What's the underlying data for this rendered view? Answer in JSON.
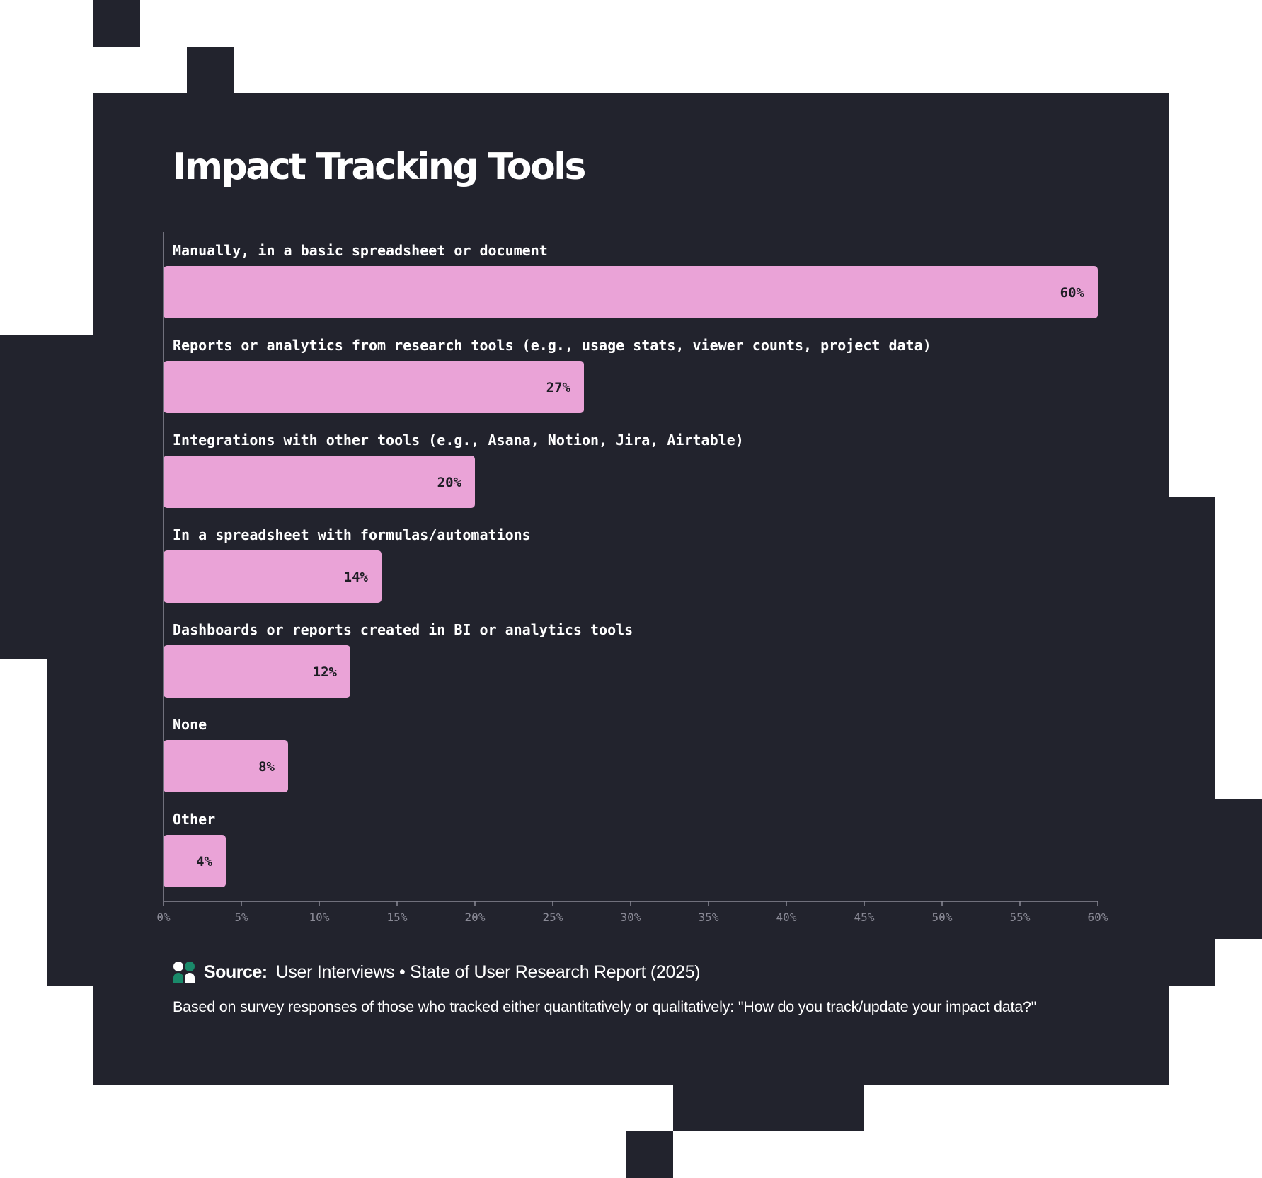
{
  "page": {
    "title": "Impact Tracking Tools",
    "source_prefix": "Source:",
    "source_text": "User Interviews • State of User Research Report (2025)",
    "footnote": "Based on survey responses of those who tracked either quantitatively or qualitatively: \"How do you track/update your impact data?\"",
    "logo_icon": "user-interviews-logo-icon"
  },
  "colors": {
    "background": "#ffffff",
    "panel": "#22232d",
    "bar": "#eaa3d7",
    "bar_value_text": "#1d1d24",
    "label_text": "#ffffff",
    "axis": "#8a8a96",
    "logo_primary": "#1a8a6a",
    "logo_secondary": "#ffffff"
  },
  "chart_data": {
    "type": "bar",
    "orientation": "horizontal",
    "title": "Impact Tracking Tools",
    "xlabel": "",
    "ylabel": "",
    "categories": [
      "Manually, in a basic spreadsheet or document",
      "Reports or analytics from research tools (e.g., usage stats, viewer counts, project data)",
      "Integrations with other tools (e.g., Asana, Notion, Jira, Airtable)",
      "In a spreadsheet with formulas/automations",
      "Dashboards or reports created in BI or analytics tools",
      "None",
      "Other"
    ],
    "values": [
      60,
      27,
      20,
      14,
      12,
      8,
      4
    ],
    "value_labels": [
      "60%",
      "27%",
      "20%",
      "14%",
      "12%",
      "8%",
      "4%"
    ],
    "xlim": [
      0,
      60
    ],
    "x_ticks": [
      0,
      5,
      10,
      15,
      20,
      25,
      30,
      35,
      40,
      45,
      50,
      55,
      60
    ],
    "x_tick_labels": [
      "0%",
      "5%",
      "10%",
      "15%",
      "20%",
      "25%",
      "30%",
      "35%",
      "40%",
      "45%",
      "50%",
      "55%",
      "60%"
    ],
    "grid": false,
    "legend": "none"
  }
}
